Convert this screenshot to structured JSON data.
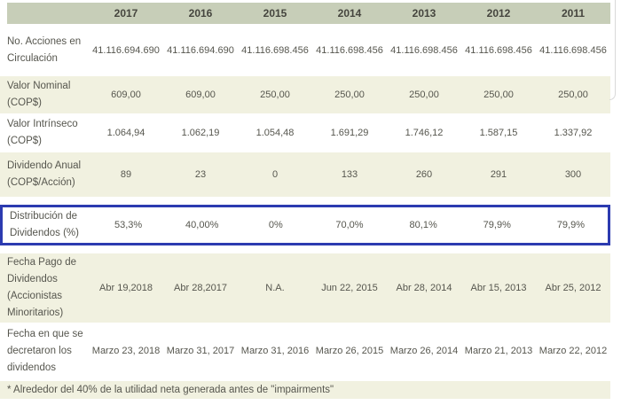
{
  "table": {
    "columns": [
      "2017",
      "2016",
      "2015",
      "2014",
      "2013",
      "2012",
      "2011"
    ],
    "rows": [
      {
        "label": "No. Acciones en Circulación",
        "values": [
          "41.116.694.690",
          "41.116.694.690",
          "41.116.698.456",
          "41.116.698.456",
          "41.116.698.456",
          "41.116.698.456",
          "41.116.698.456"
        ],
        "highlighted": false
      },
      {
        "label": "Valor Nominal (COP$)",
        "values": [
          "609,00",
          "609,00",
          "250,00",
          "250,00",
          "250,00",
          "250,00",
          "250,00"
        ],
        "highlighted": false
      },
      {
        "label": "Valor Intrínseco (COP$)",
        "values": [
          "1.064,94",
          "1.062,19",
          "1.054,48",
          "1.691,29",
          "1.746,12",
          "1.587,15",
          "1.337,92"
        ],
        "highlighted": false
      },
      {
        "label": "Dividendo Anual (COP$/Acción)",
        "values": [
          "89",
          "23",
          "0",
          "133",
          "260",
          "291",
          "300"
        ],
        "highlighted": false
      },
      {
        "label": "Distribución de Dividendos (%)",
        "values": [
          "53,3%",
          "40,00%",
          "0%",
          "70,0%",
          "80,1%",
          "79,9%",
          "79,9%"
        ],
        "highlighted": true
      },
      {
        "label": "Fecha Pago de Dividendos (Accionistas Minoritarios)",
        "values": [
          "Abr 19,2018",
          "Abr 28,2017",
          "N.A.",
          "Jun 22, 2015",
          "Abr 28, 2014",
          "Abr 15, 2013",
          "Abr 25, 2012"
        ],
        "highlighted": false
      },
      {
        "label": "Fecha en que se decretaron los dividendos",
        "values": [
          "Marzo 23, 2018",
          "Marzo 31, 2017",
          "Marzo 31, 2016",
          "Marzo 26, 2015",
          "Marzo 26, 2014",
          "Marzo 21, 2013",
          "Marzo 22, 2012"
        ],
        "highlighted": false
      }
    ],
    "footnote": "* Alrededor del 40% de la utilidad neta generada antes de \"impairments\""
  },
  "colors": {
    "header_bg": "#c7ceb8",
    "stripe_bg": "#f1f1e0",
    "highlight_border": "#2c3bb0",
    "text": "#56564e",
    "header_text": "#45453e",
    "edge_line": "#d9d9d9"
  }
}
